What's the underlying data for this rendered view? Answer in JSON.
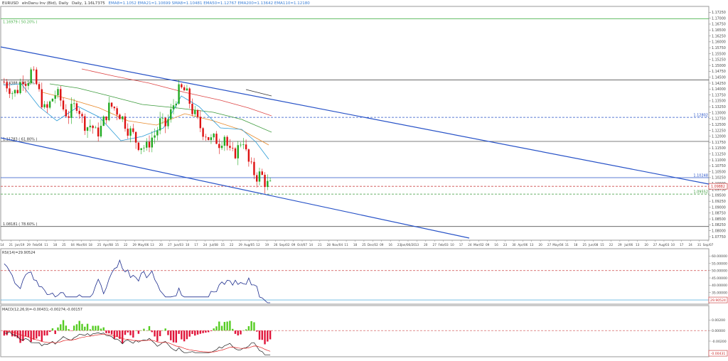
{
  "header": {
    "symbol": "EURUSD",
    "description": "eInDanu Inv (Bid), Daily",
    "ohlc": "Daily, 1.16L7375",
    "indicators_text": "EMA8=1.1052 EMA21=1.10699 SMA8=1.10481 EMA50=1.12767 EMA200=1.13642 EMA110=1.12180"
  },
  "price_axis": {
    "ticks": [
      "1.17500",
      "1.17250",
      "1.17000",
      "1.16750",
      "1.16500",
      "1.16250",
      "1.16000",
      "1.15750",
      "1.15500",
      "1.15250",
      "1.15000",
      "1.14750",
      "1.14500",
      "1.14250",
      "1.14000",
      "1.13750",
      "1.13500",
      "1.13250",
      "1.13000",
      "1.12750",
      "1.12500",
      "1.12250",
      "1.12000",
      "1.11750",
      "1.11500",
      "1.11250",
      "1.11000",
      "1.10750",
      "1.10500",
      "1.10250",
      "1.10000",
      "1.09750",
      "1.09500",
      "1.09250",
      "1.09000",
      "1.08750",
      "1.08500",
      "1.08250",
      "1.08000",
      "1.07750"
    ],
    "current_price_label": "1.09882",
    "h_labels": {
      "top_fib": "1.16979 ( 50.20% )",
      "fib_382": "1.14388 ( 38.20% )",
      "fib_618": "1.11783 ( 61.80% )",
      "fib_786": "1.08181 ( 78.60% )",
      "blue_dash_right": "1.12802",
      "blue_solid_right": "1.10248",
      "green_dash_right": "1.09552"
    },
    "colors": {
      "fib": "#7b7b7b",
      "top_line": "#49b24b",
      "blue_line": "#2752c7",
      "green_dash": "#3a9a3a",
      "red_dash": "#ce4a4a"
    }
  },
  "date_axis": {
    "labels": [
      "14",
      "21",
      "Jan/19",
      "29",
      "Feb/04",
      "11",
      "18",
      "25",
      "04",
      "Mar/04",
      "18",
      "25",
      "Apr/08",
      "15",
      "22",
      "29",
      "May/06",
      "13",
      "20",
      "27",
      "Jun/03",
      "10",
      "17",
      "24",
      "Jul/08",
      "15",
      "22",
      "29",
      "Aug/05",
      "12",
      "19",
      "26",
      "Sep/02",
      "09",
      "Oct/07",
      "14",
      "21",
      "28",
      "Nov/04",
      "11",
      "18",
      "25",
      "Dec/02",
      "09",
      "16",
      "23",
      "Jan/06/20",
      "13",
      "20",
      "27",
      "Feb/03",
      "10",
      "17",
      "24",
      "Mar/02",
      "09",
      "16",
      "23",
      "30",
      "Apr/06",
      "13",
      "20",
      "27",
      "May/04",
      "11",
      "18",
      "25",
      "Jun/08",
      "15",
      "22",
      "29",
      "Jul/06",
      "13",
      "20",
      "27",
      "Aug/03",
      "10",
      "17",
      "24",
      "31",
      "Sep/07"
    ]
  },
  "rsi_panel": {
    "title": "RSI(14)=29.90524",
    "ticks": [
      "60.00000",
      "55.00000",
      "50.00000",
      "45.00000",
      "40.00000",
      "35.00000"
    ],
    "current_label": "29.90524",
    "level": 50
  },
  "macd_panel": {
    "title": "MACD(12,26,9)=-0.00431;-0.00274;-0.00157",
    "ticks": [
      "0.00200",
      "0.00000",
      "-0.00200"
    ],
    "current_label": "-0.00431",
    "colors": {
      "pos": "#55cc22",
      "neg": "#e0153a",
      "line": "#1a1a1a",
      "signal": "#e02020"
    }
  },
  "chart_data": {
    "type": "candlestick",
    "symbol": "EURUSD",
    "timeframe": "Daily",
    "price_range": [
      1.076,
      1.175
    ],
    "x_range": [
      "2019-01-14",
      "2020-09-07"
    ],
    "fib_levels": [
      {
        "label": "1.16979 ( 50.20% )",
        "price": 1.16979
      },
      {
        "label": "1.14388 ( 38.20% )",
        "price": 1.14388
      },
      {
        "label": "1.11783 ( 61.80% )",
        "price": 1.11783
      },
      {
        "label": "1.08181 ( 78.60% )",
        "price": 1.08181
      }
    ],
    "horizontal_lines": [
      {
        "price": 1.12802,
        "style": "dashed",
        "color": "blue"
      },
      {
        "price": 1.10248,
        "style": "solid",
        "color": "blue"
      },
      {
        "price": 1.09882,
        "style": "dashed",
        "color": "red"
      },
      {
        "price": 1.09552,
        "style": "dashed",
        "color": "green"
      }
    ],
    "channel": {
      "upper": [
        {
          "date": "2019-01-14",
          "price": 1.158
        },
        {
          "date": "2020-09-07",
          "price": 1.0985
        }
      ],
      "lower": [
        {
          "date": "2019-01-14",
          "price": 1.119
        },
        {
          "date": "2019-12-30",
          "price": 1.077
        }
      ]
    },
    "close_series_approx": [
      1.143,
      1.141,
      1.138,
      1.14,
      1.145,
      1.143,
      1.148,
      1.142,
      1.136,
      1.13,
      1.134,
      1.138,
      1.137,
      1.131,
      1.129,
      1.132,
      1.134,
      1.127,
      1.124,
      1.125,
      1.121,
      1.123,
      1.128,
      1.133,
      1.132,
      1.13,
      1.127,
      1.123,
      1.121,
      1.117,
      1.116,
      1.115,
      1.119,
      1.121,
      1.126,
      1.124,
      1.128,
      1.134,
      1.139,
      1.14,
      1.137,
      1.131,
      1.127,
      1.123,
      1.121,
      1.118,
      1.119,
      1.117,
      1.121,
      1.113,
      1.112,
      1.115,
      1.12,
      1.11,
      1.106,
      1.103,
      1.104,
      1.1,
      1.099
    ]
  }
}
